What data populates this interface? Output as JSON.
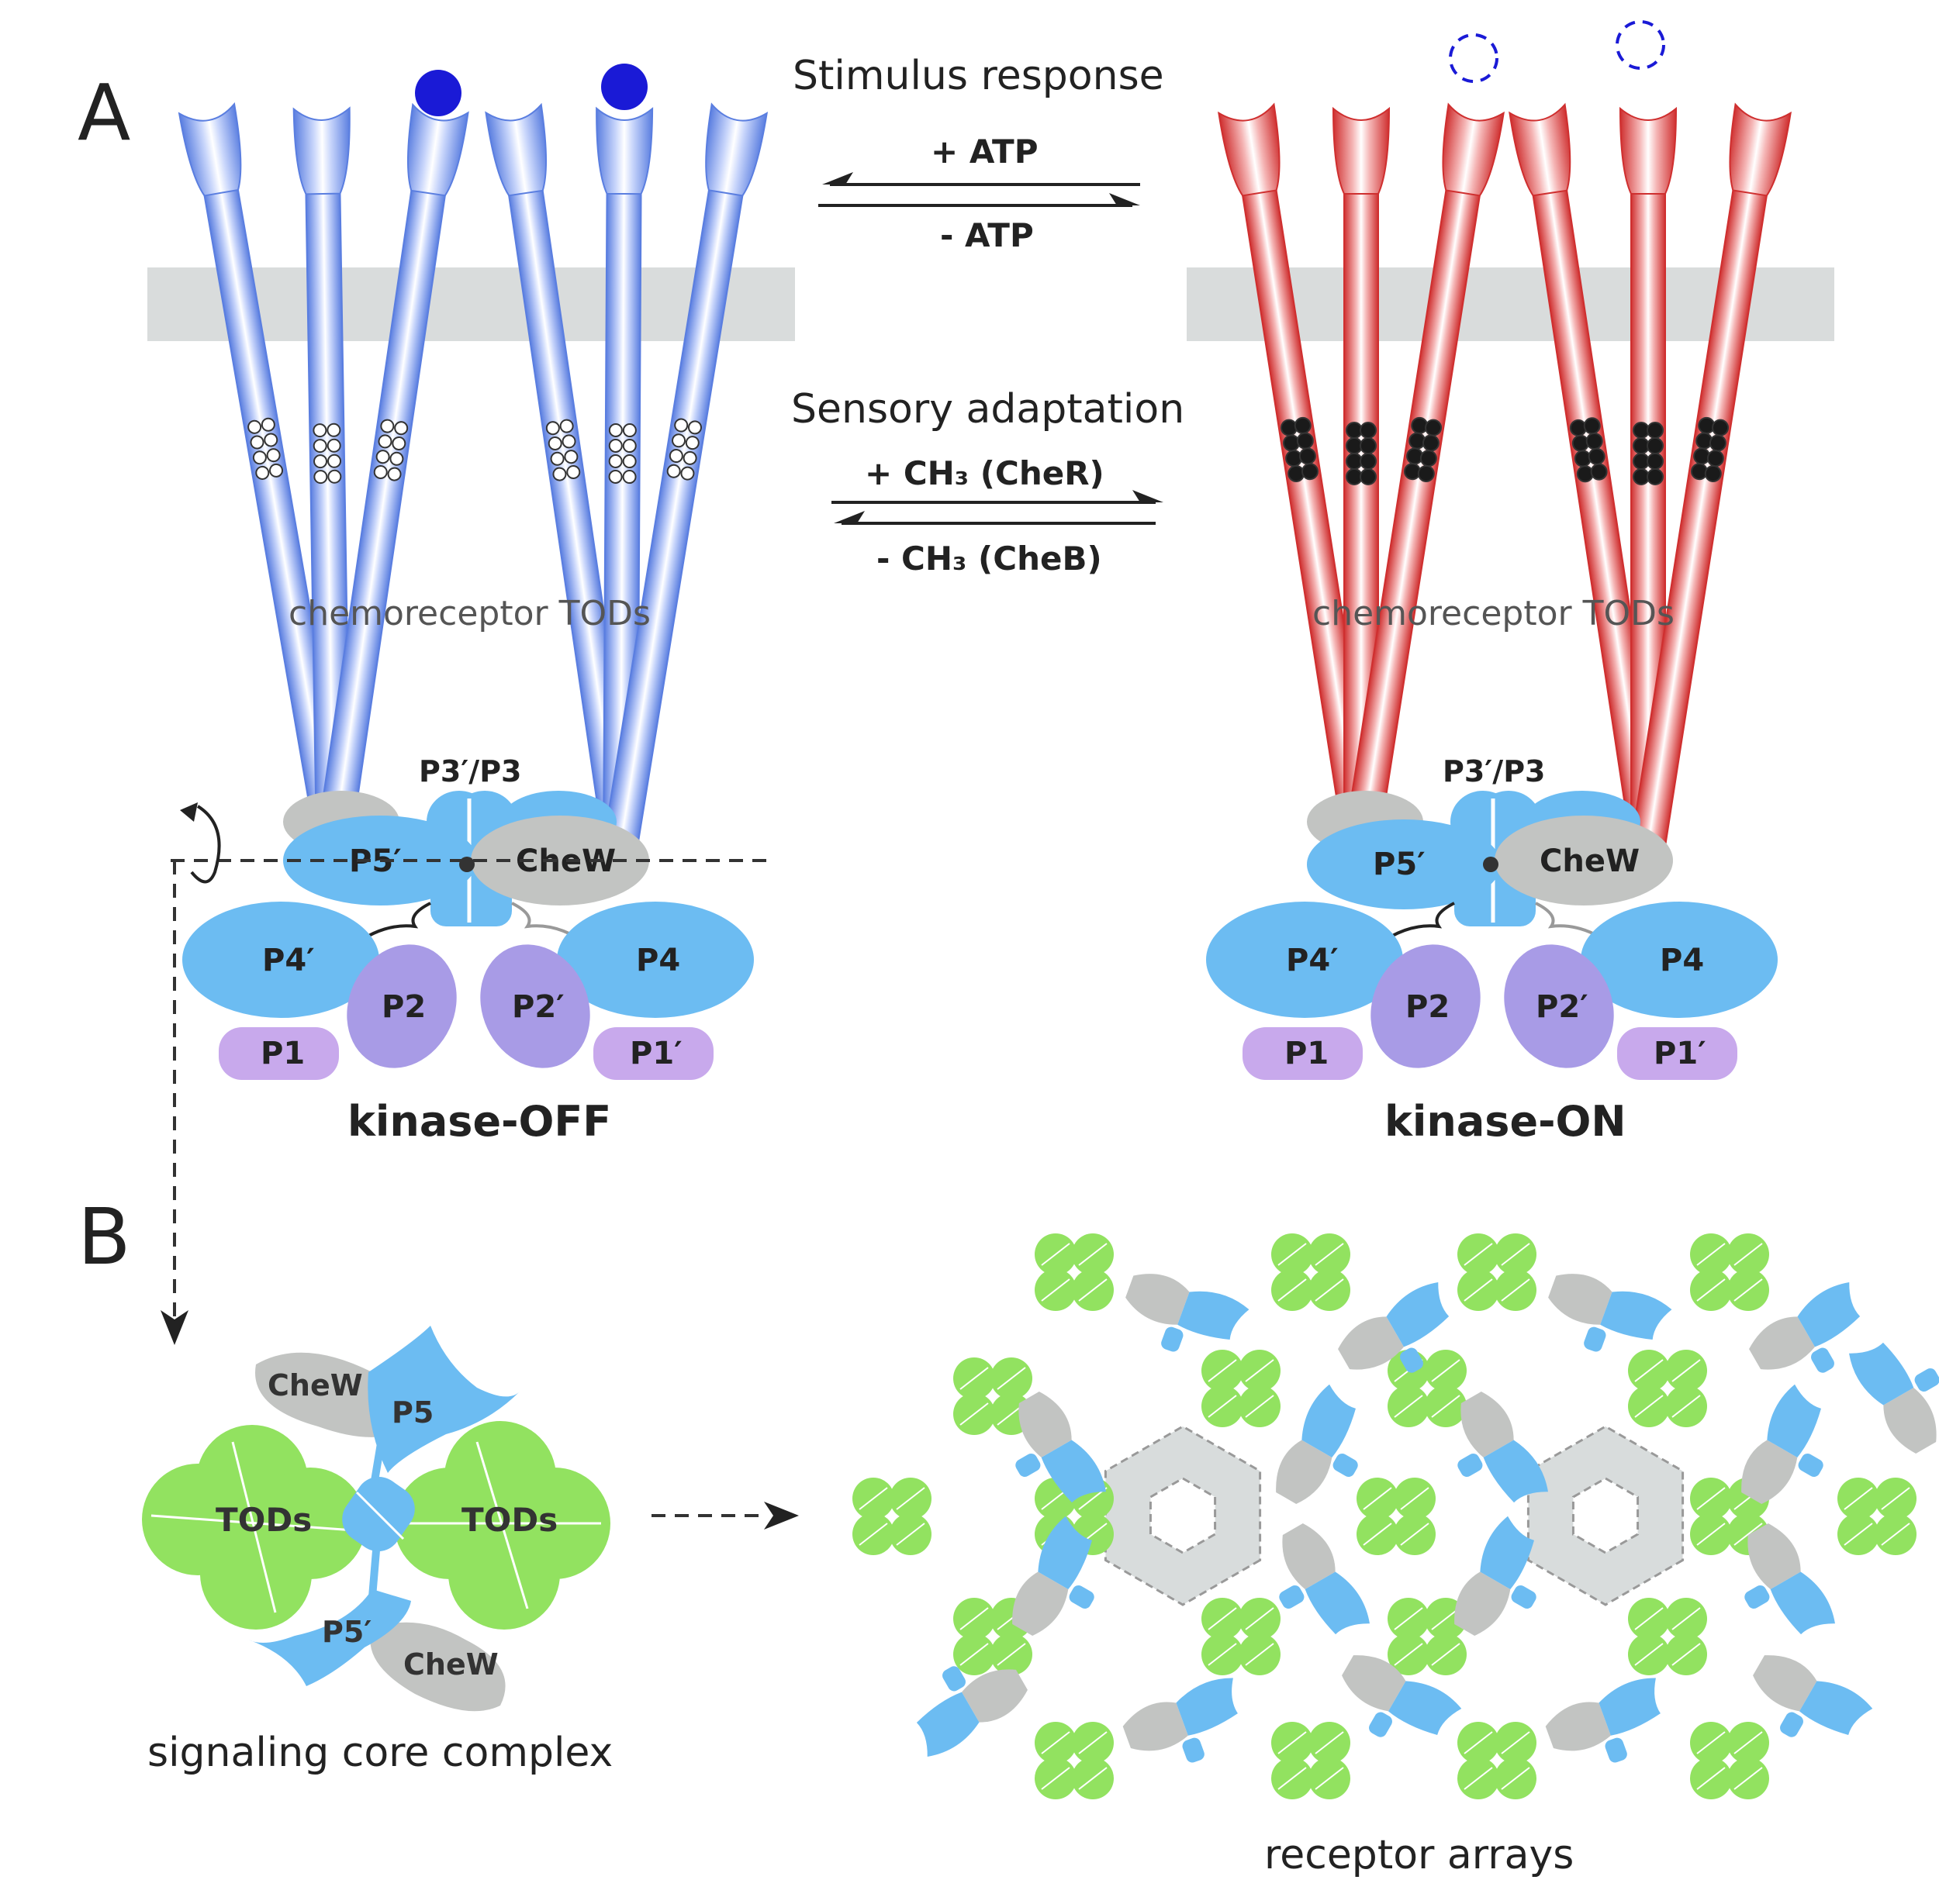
{
  "panels": {
    "a_label": "A",
    "b_label": "B"
  },
  "reactions": {
    "stimulus_title": "Stimulus response",
    "atp_plus": "+ ATP",
    "atp_minus": "- ATP",
    "adaptation_title": "Sensory adaptation",
    "ch3_plus": "+ CH₃   (CheR)",
    "ch3_minus": "- CH₃   (CheB)"
  },
  "states": {
    "off": {
      "tods_label": "chemoreceptor  TODs",
      "p3_label": "P3′/P3",
      "p5_label": "P5′",
      "chew_label": "CheW",
      "p4a_label": "P4′",
      "p4b_label": "P4",
      "p2a_label": "P2",
      "p2b_label": "P2′",
      "p1a_label": "P1",
      "p1b_label": "P1′",
      "state_label": "kinase-OFF"
    },
    "on": {
      "tods_label": "chemoreceptor  TODs",
      "p3_label": "P3′/P3",
      "p5_label": "P5′",
      "chew_label": "CheW",
      "p4a_label": "P4′",
      "p4b_label": "P4",
      "p2a_label": "P2",
      "p2b_label": "P2′",
      "p1a_label": "P1",
      "p1b_label": "P1′",
      "state_label": "kinase-ON"
    }
  },
  "core_complex": {
    "chew_top": "CheW",
    "p5_top": "P5",
    "tods_left": "TODs",
    "tods_right": "TODs",
    "p5_bottom": "P5′",
    "chew_bottom": "CheW",
    "caption": "signaling core complex"
  },
  "arrays": {
    "caption": "receptor arrays"
  },
  "colors": {
    "receptor_off": "#6e8fe6",
    "receptor_on": "#d63a3a",
    "ligand": "#1a1ad6",
    "membrane": "#d9dcdc",
    "kinase_blue": "#6cbcf2",
    "kinase_purple": "#a89be6",
    "chew_grey": "#c2c4c2",
    "tod_green": "#92e260",
    "text": "#222222"
  }
}
